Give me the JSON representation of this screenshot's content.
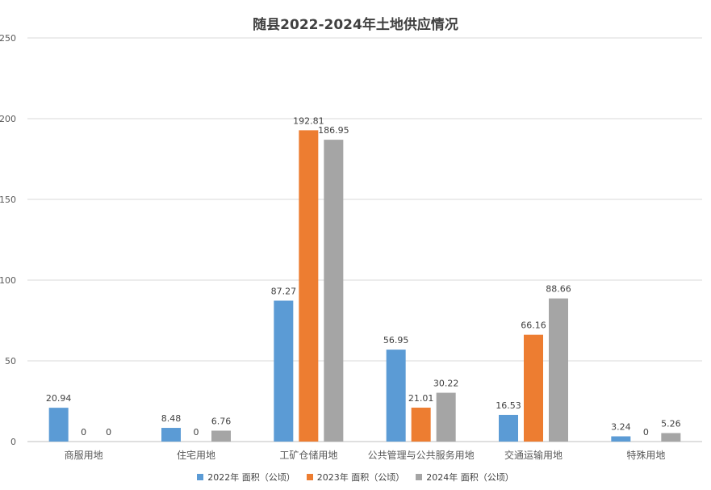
{
  "chart_data": {
    "type": "bar",
    "title": "随县2022-2024年土地供应情况",
    "categories": [
      "商服用地",
      "住宅用地",
      "工矿仓储用地",
      "公共管理与公共服务用地",
      "交通运输用地",
      "特殊用地"
    ],
    "series": [
      {
        "name": "2022年 面积（公顷）",
        "values": [
          20.94,
          8.48,
          87.27,
          56.95,
          16.53,
          3.24
        ],
        "labels": [
          "20.94",
          "8.48",
          "87.27",
          "56.95",
          "16.53",
          "3.24"
        ],
        "color": "#5B9BD5"
      },
      {
        "name": "2023年 面积（公顷）",
        "values": [
          0,
          0,
          192.81,
          21.01,
          66.16,
          0
        ],
        "labels": [
          "0",
          "0",
          "192.81",
          "21.01",
          "66.16",
          "0"
        ],
        "color": "#ED7D31"
      },
      {
        "name": "2024年 面积（公顷）",
        "values": [
          0,
          6.76,
          186.95,
          30.22,
          88.66,
          5.26
        ],
        "labels": [
          "0",
          "6.76",
          "186.95",
          "30.22",
          "88.66",
          "5.26"
        ],
        "color": "#A5A5A5"
      }
    ],
    "ylim": [
      0,
      250
    ],
    "yticks": [
      "0",
      "50",
      "100",
      "150",
      "200",
      "250"
    ],
    "grid": true,
    "legend_position": "bottom",
    "xlabel": "",
    "ylabel": ""
  }
}
